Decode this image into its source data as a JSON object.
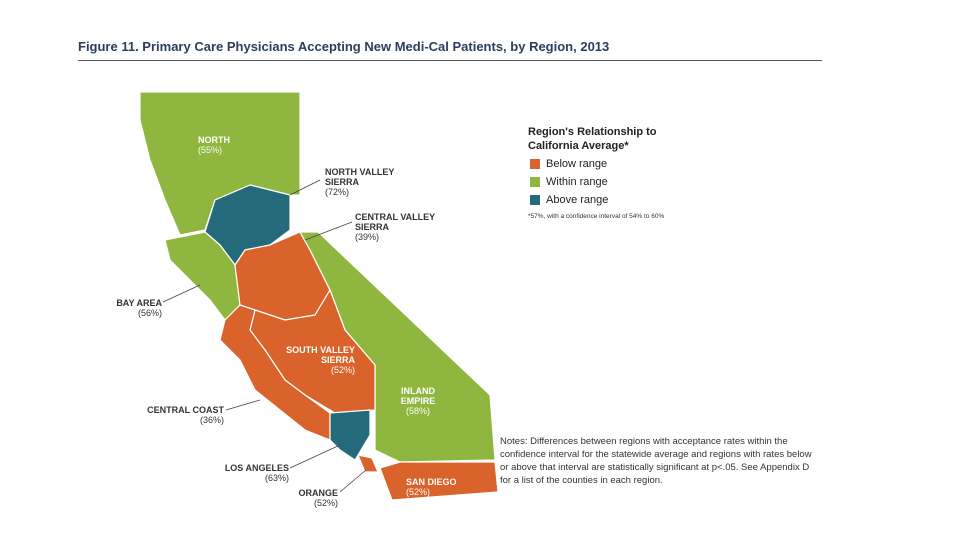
{
  "header": {
    "title": "Figure 11. Primary Care Physicians Accepting New Medi-Cal Patients, by Region, 2013"
  },
  "legend": {
    "title": "Region's Relationship to California Average*",
    "items": [
      "Below range",
      "Within range",
      "Above range"
    ],
    "footnote": "*57%, with a confidence interval of 54% to 60%"
  },
  "regions": [
    {
      "name": "NORTH",
      "value": "(55%)"
    },
    {
      "name": "NORTH VALLEY SIERRA",
      "value": "(72%)"
    },
    {
      "name": "CENTRAL VALLEY SIERRA",
      "value": "(39%)"
    },
    {
      "name": "BAY AREA",
      "value": "(56%)"
    },
    {
      "name": "SOUTH VALLEY SIERRA",
      "value": "(52%)"
    },
    {
      "name": "INLAND EMPIRE",
      "value": "(58%)"
    },
    {
      "name": "CENTRAL COAST",
      "value": "(36%)"
    },
    {
      "name": "LOS ANGELES",
      "value": "(63%)"
    },
    {
      "name": "ORANGE",
      "value": "(52%)"
    },
    {
      "name": "SAN DIEGO",
      "value": "(52%)"
    }
  ],
  "notes": "Notes: Differences between regions with acceptance rates within the confidence interval for the statewide average and regions with rates below or above that interval are statistically significant at p<.05. See Appendix D for a list of the counties in each region."
}
